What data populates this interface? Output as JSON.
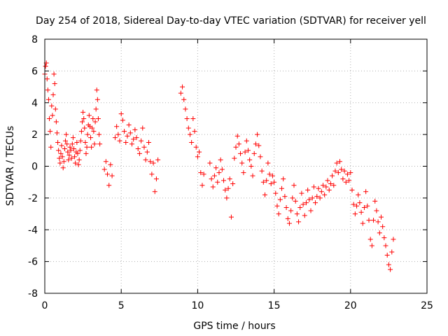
{
  "chart_data": {
    "type": "scatter",
    "title": "Day 254 of 2018, Sidereal Day-to-day VTEC variation (SDTVAR) for receiver yell",
    "xlabel": "GPS time / hours",
    "ylabel": "SDTVAR / TECUs",
    "xlim": [
      0,
      25
    ],
    "ylim": [
      -8,
      8
    ],
    "xticks": [
      0,
      5,
      10,
      15,
      20,
      25
    ],
    "yticks": [
      -8,
      -6,
      -4,
      -2,
      0,
      2,
      4,
      6,
      8
    ],
    "grid": true,
    "marker": "+",
    "series": [
      {
        "name": "SDTVAR",
        "color": "#ff0000",
        "points": [
          [
            0.0,
            5.8
          ],
          [
            0.05,
            6.3
          ],
          [
            0.1,
            6.5
          ],
          [
            0.15,
            5.5
          ],
          [
            0.2,
            4.8
          ],
          [
            0.25,
            4.2
          ],
          [
            0.3,
            3.0
          ],
          [
            0.35,
            2.2
          ],
          [
            0.4,
            1.2
          ],
          [
            0.45,
            3.8
          ],
          [
            0.5,
            3.2
          ],
          [
            0.55,
            4.5
          ],
          [
            0.6,
            5.8
          ],
          [
            0.65,
            5.2
          ],
          [
            0.7,
            3.6
          ],
          [
            0.75,
            2.8
          ],
          [
            0.8,
            2.1
          ],
          [
            0.85,
            1.5
          ],
          [
            0.9,
            1.0
          ],
          [
            0.95,
            0.5
          ],
          [
            1.0,
            0.2
          ],
          [
            1.05,
            0.8
          ],
          [
            1.1,
            1.3
          ],
          [
            1.15,
            0.6
          ],
          [
            1.2,
            -0.1
          ],
          [
            1.25,
            0.3
          ],
          [
            1.3,
            1.1
          ],
          [
            1.35,
            1.6
          ],
          [
            1.4,
            2.0
          ],
          [
            1.45,
            1.4
          ],
          [
            1.5,
            0.9
          ],
          [
            1.55,
            0.4
          ],
          [
            1.6,
            0.7
          ],
          [
            1.65,
            1.2
          ],
          [
            1.7,
            1.0
          ],
          [
            1.75,
            0.5
          ],
          [
            1.8,
            1.4
          ],
          [
            1.85,
            1.8
          ],
          [
            1.9,
            1.1
          ],
          [
            1.95,
            0.6
          ],
          [
            2.0,
            0.2
          ],
          [
            2.05,
            0.9
          ],
          [
            2.1,
            1.5
          ],
          [
            2.15,
            0.8
          ],
          [
            2.2,
            0.1
          ],
          [
            2.25,
            0.4
          ],
          [
            2.3,
            1.0
          ],
          [
            2.35,
            1.6
          ],
          [
            2.4,
            2.2
          ],
          [
            2.45,
            2.8
          ],
          [
            2.5,
            3.4
          ],
          [
            2.55,
            3.0
          ],
          [
            2.6,
            2.4
          ],
          [
            2.65,
            1.5
          ],
          [
            2.7,
            0.8
          ],
          [
            2.75,
            1.2
          ],
          [
            2.8,
            2.0
          ],
          [
            2.85,
            2.6
          ],
          [
            2.9,
            3.2
          ],
          [
            2.95,
            2.5
          ],
          [
            3.0,
            1.8
          ],
          [
            3.05,
            1.2
          ],
          [
            3.1,
            2.4
          ],
          [
            3.15,
            3.0
          ],
          [
            3.2,
            2.2
          ],
          [
            3.25,
            1.4
          ],
          [
            3.3,
            2.8
          ],
          [
            3.35,
            3.6
          ],
          [
            3.4,
            4.8
          ],
          [
            3.45,
            4.2
          ],
          [
            3.5,
            3.0
          ],
          [
            3.55,
            2.0
          ],
          [
            3.6,
            1.4
          ],
          [
            3.9,
            -0.2
          ],
          [
            4.0,
            0.3
          ],
          [
            4.1,
            -0.5
          ],
          [
            4.2,
            -1.2
          ],
          [
            4.3,
            0.1
          ],
          [
            4.4,
            -0.6
          ],
          [
            4.6,
            1.8
          ],
          [
            4.7,
            2.5
          ],
          [
            4.8,
            2.0
          ],
          [
            4.9,
            1.6
          ],
          [
            5.0,
            3.3
          ],
          [
            5.1,
            2.9
          ],
          [
            5.2,
            2.2
          ],
          [
            5.3,
            1.5
          ],
          [
            5.4,
            1.9
          ],
          [
            5.5,
            2.6
          ],
          [
            5.6,
            2.1
          ],
          [
            5.7,
            1.4
          ],
          [
            5.8,
            1.7
          ],
          [
            5.9,
            2.3
          ],
          [
            6.0,
            1.8
          ],
          [
            6.1,
            1.1
          ],
          [
            6.2,
            0.8
          ],
          [
            6.3,
            1.6
          ],
          [
            6.4,
            2.4
          ],
          [
            6.5,
            1.2
          ],
          [
            6.6,
            0.4
          ],
          [
            6.7,
            0.9
          ],
          [
            6.8,
            1.5
          ],
          [
            6.9,
            0.3
          ],
          [
            7.0,
            -0.5
          ],
          [
            7.1,
            0.2
          ],
          [
            7.2,
            -1.6
          ],
          [
            7.3,
            -0.8
          ],
          [
            7.4,
            0.4
          ],
          [
            8.9,
            4.6
          ],
          [
            9.0,
            5.0
          ],
          [
            9.1,
            4.2
          ],
          [
            9.2,
            3.6
          ],
          [
            9.3,
            3.0
          ],
          [
            9.4,
            2.4
          ],
          [
            9.5,
            2.0
          ],
          [
            9.6,
            1.5
          ],
          [
            9.7,
            3.0
          ],
          [
            9.8,
            2.2
          ],
          [
            9.9,
            1.2
          ],
          [
            10.0,
            0.6
          ],
          [
            10.1,
            0.9
          ],
          [
            10.2,
            -0.4
          ],
          [
            10.3,
            -1.2
          ],
          [
            10.4,
            -0.5
          ],
          [
            10.8,
            0.2
          ],
          [
            10.9,
            -0.8
          ],
          [
            11.0,
            -1.3
          ],
          [
            11.1,
            -0.6
          ],
          [
            11.2,
            -0.1
          ],
          [
            11.3,
            -1.0
          ],
          [
            11.4,
            -0.4
          ],
          [
            11.5,
            0.4
          ],
          [
            11.6,
            -0.2
          ],
          [
            11.7,
            -0.9
          ],
          [
            11.8,
            -1.5
          ],
          [
            11.9,
            -2.0
          ],
          [
            12.0,
            -1.4
          ],
          [
            12.1,
            -0.8
          ],
          [
            12.2,
            -3.2
          ],
          [
            12.3,
            -1.1
          ],
          [
            12.4,
            0.5
          ],
          [
            12.5,
            1.2
          ],
          [
            12.6,
            1.9
          ],
          [
            12.7,
            1.4
          ],
          [
            12.8,
            0.8
          ],
          [
            12.9,
            0.2
          ],
          [
            13.0,
            -0.4
          ],
          [
            13.1,
            0.9
          ],
          [
            13.2,
            1.6
          ],
          [
            13.3,
            1.0
          ],
          [
            13.4,
            0.4
          ],
          [
            13.5,
            0.0
          ],
          [
            13.6,
            -0.6
          ],
          [
            13.7,
            0.8
          ],
          [
            13.8,
            1.4
          ],
          [
            13.9,
            2.0
          ],
          [
            14.0,
            1.3
          ],
          [
            14.1,
            0.6
          ],
          [
            14.2,
            -0.3
          ],
          [
            14.3,
            -1.0
          ],
          [
            14.4,
            -1.8
          ],
          [
            14.5,
            -0.9
          ],
          [
            14.6,
            0.2
          ],
          [
            14.7,
            -0.5
          ],
          [
            14.8,
            -1.1
          ],
          [
            14.9,
            -0.6
          ],
          [
            15.0,
            -1.0
          ],
          [
            15.1,
            -1.7
          ],
          [
            15.2,
            -2.5
          ],
          [
            15.3,
            -3.0
          ],
          [
            15.4,
            -2.1
          ],
          [
            15.5,
            -1.4
          ],
          [
            15.6,
            -0.8
          ],
          [
            15.7,
            -1.9
          ],
          [
            15.8,
            -2.6
          ],
          [
            15.9,
            -3.3
          ],
          [
            16.0,
            -3.6
          ],
          [
            16.1,
            -2.8
          ],
          [
            16.2,
            -2.0
          ],
          [
            16.3,
            -1.2
          ],
          [
            16.4,
            -2.2
          ],
          [
            16.5,
            -3.0
          ],
          [
            16.6,
            -3.5
          ],
          [
            16.7,
            -2.6
          ],
          [
            16.8,
            -1.7
          ],
          [
            16.9,
            -2.4
          ],
          [
            17.0,
            -3.1
          ],
          [
            17.1,
            -2.3
          ],
          [
            17.2,
            -1.5
          ],
          [
            17.3,
            -2.1
          ],
          [
            17.4,
            -2.8
          ],
          [
            17.5,
            -2.0
          ],
          [
            17.6,
            -1.3
          ],
          [
            17.7,
            -2.3
          ],
          [
            17.8,
            -1.9
          ],
          [
            17.9,
            -1.4
          ],
          [
            18.0,
            -2.0
          ],
          [
            18.1,
            -1.6
          ],
          [
            18.2,
            -1.2
          ],
          [
            18.3,
            -1.8
          ],
          [
            18.4,
            -1.3
          ],
          [
            18.5,
            -0.9
          ],
          [
            18.6,
            -1.5
          ],
          [
            18.7,
            -1.1
          ],
          [
            18.8,
            -0.6
          ],
          [
            18.9,
            -1.2
          ],
          [
            19.0,
            -0.3
          ],
          [
            19.1,
            0.2
          ],
          [
            19.2,
            -0.4
          ],
          [
            19.3,
            0.3
          ],
          [
            19.4,
            -0.2
          ],
          [
            19.5,
            -0.8
          ],
          [
            19.6,
            -0.3
          ],
          [
            19.7,
            -1.0
          ],
          [
            19.8,
            -0.5
          ],
          [
            19.9,
            -0.9
          ],
          [
            20.0,
            -0.4
          ],
          [
            20.1,
            -1.5
          ],
          [
            20.2,
            -2.4
          ],
          [
            20.3,
            -3.0
          ],
          [
            20.4,
            -2.5
          ],
          [
            20.5,
            -1.8
          ],
          [
            20.6,
            -2.3
          ],
          [
            20.7,
            -2.9
          ],
          [
            20.8,
            -3.6
          ],
          [
            20.9,
            -2.6
          ],
          [
            21.0,
            -1.6
          ],
          [
            21.1,
            -2.5
          ],
          [
            21.2,
            -3.4
          ],
          [
            21.3,
            -4.6
          ],
          [
            21.4,
            -5.0
          ],
          [
            21.5,
            -3.4
          ],
          [
            21.6,
            -2.2
          ],
          [
            21.7,
            -2.8
          ],
          [
            21.8,
            -3.5
          ],
          [
            21.9,
            -4.2
          ],
          [
            22.0,
            -3.2
          ],
          [
            22.1,
            -3.8
          ],
          [
            22.2,
            -4.5
          ],
          [
            22.3,
            -5.0
          ],
          [
            22.4,
            -5.6
          ],
          [
            22.5,
            -6.2
          ],
          [
            22.6,
            -6.5
          ],
          [
            22.7,
            -5.4
          ],
          [
            22.8,
            -4.6
          ]
        ]
      }
    ]
  }
}
